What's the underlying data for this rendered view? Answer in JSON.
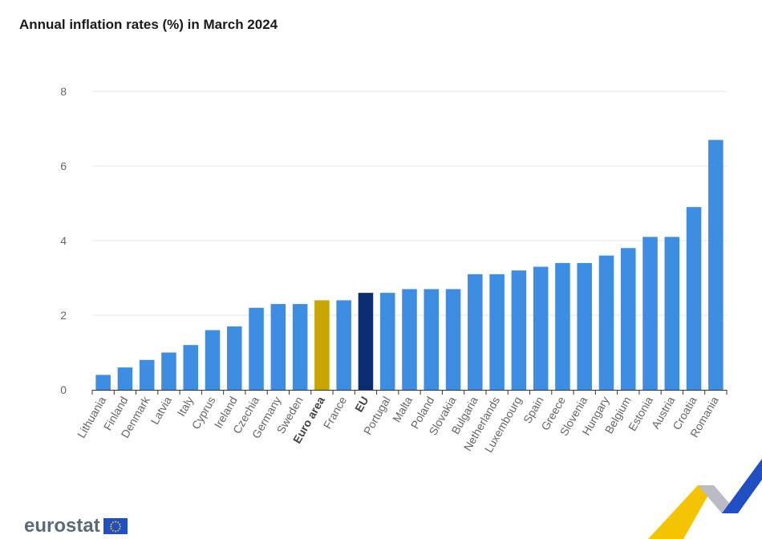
{
  "header": {
    "title": "Annual inflation rates (%) in March 2024"
  },
  "branding": {
    "logo_text": "eurostat"
  },
  "colors": {
    "bar_default": "#3d8ee3",
    "bar_euro_area": "#c9a500",
    "bar_eu": "#0b2d73",
    "grid": "#e3e6ef",
    "accent_yellow": "#f5c400",
    "accent_blue": "#1f4fc2",
    "accent_grey": "#b9bcc4"
  },
  "chart_data": {
    "type": "bar",
    "title": "Annual inflation rates (%) in March 2024",
    "xlabel": "",
    "ylabel": "",
    "ylim": [
      0,
      8
    ],
    "yticks": [
      0,
      2,
      4,
      6,
      8
    ],
    "grid": true,
    "legend": "none",
    "categories": [
      "Lithuania",
      "Finland",
      "Denmark",
      "Latvia",
      "Italy",
      "Cyprus",
      "Ireland",
      "Czechia",
      "Germany",
      "Sweden",
      "Euro area",
      "France",
      "EU",
      "Portugal",
      "Malta",
      "Poland",
      "Slovakia",
      "Bulgaria",
      "Netherlands",
      "Luxembourg",
      "Spain",
      "Greece",
      "Slovenia",
      "Hungary",
      "Belgium",
      "Estonia",
      "Austria",
      "Croatia",
      "Romania"
    ],
    "values": [
      0.4,
      0.6,
      0.8,
      1.0,
      1.2,
      1.6,
      1.7,
      2.2,
      2.3,
      2.3,
      2.4,
      2.4,
      2.6,
      2.6,
      2.7,
      2.7,
      2.7,
      3.1,
      3.1,
      3.2,
      3.3,
      3.4,
      3.4,
      3.6,
      3.8,
      4.1,
      4.1,
      4.9,
      6.7
    ],
    "highlight": {
      "Euro area": "euro_area",
      "EU": "eu"
    },
    "bold_categories": [
      "Euro area",
      "EU"
    ]
  }
}
